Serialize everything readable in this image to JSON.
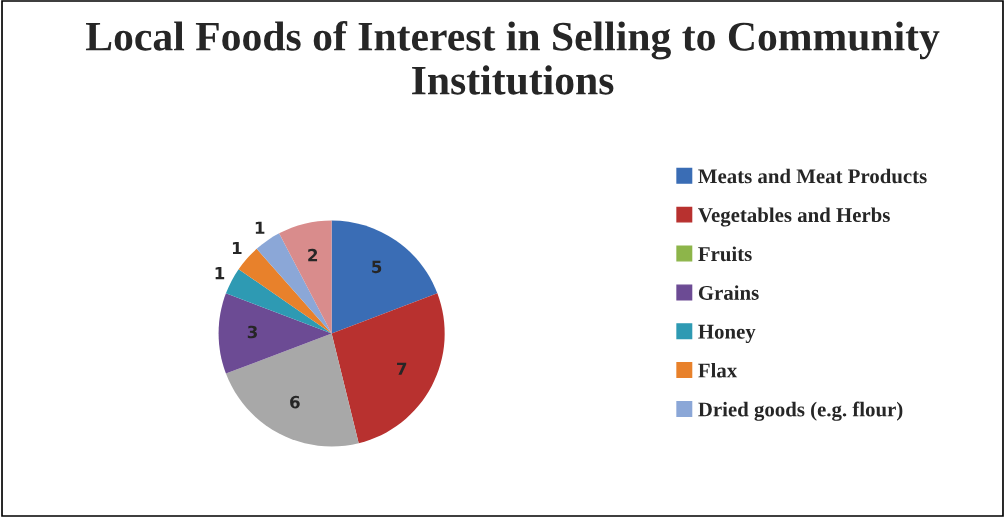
{
  "chart_data": {
    "type": "pie",
    "title": "Local Foods of Interest in Selling to Community Institutions",
    "categories": [
      "Meats and Meat Products",
      "Vegetables and Herbs",
      "Fruits",
      null,
      "Grains",
      "Honey",
      "Flax",
      "Dried goods (e.g. flour)",
      null
    ],
    "values": [
      5,
      7,
      0,
      6,
      3,
      1,
      1,
      1,
      2
    ],
    "colors": [
      "#3a6db5",
      "#b8312f",
      "#8db54a",
      "#a8a8a8",
      "#6c4b94",
      "#2e9ab3",
      "#e8812b",
      "#8ba7d7",
      "#d98c8c"
    ],
    "data_labels": true,
    "legend": "right"
  }
}
